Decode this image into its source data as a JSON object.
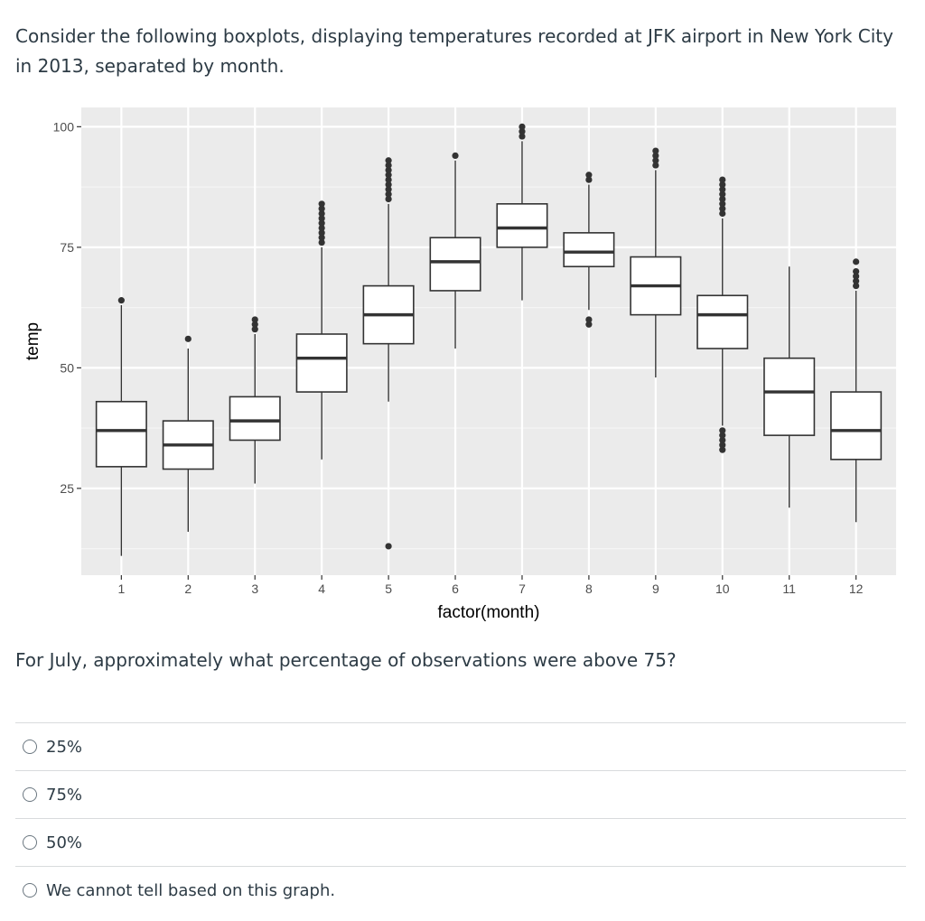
{
  "question": {
    "intro": "Consider the following boxplots, displaying temperatures recorded at JFK airport in New York City in 2013, separated by month.",
    "prompt": "For July, approximately what percentage of observations were above 75?"
  },
  "answers": [
    {
      "label": "25%"
    },
    {
      "label": "75%"
    },
    {
      "label": "50%"
    },
    {
      "label": "We cannot tell based on this graph."
    }
  ],
  "chart_data": {
    "type": "boxplot",
    "xlabel": "factor(month)",
    "ylabel": "temp",
    "ylim": [
      7,
      104
    ],
    "yticks": [
      25,
      50,
      75,
      100
    ],
    "grid": true,
    "background": "#ebebeb",
    "categories": [
      "1",
      "2",
      "3",
      "4",
      "5",
      "6",
      "7",
      "8",
      "9",
      "10",
      "11",
      "12"
    ],
    "boxes": [
      {
        "q1": 29.5,
        "median": 37,
        "q3": 43,
        "lower": 11,
        "upper": 63,
        "outliers": [
          64
        ]
      },
      {
        "q1": 29,
        "median": 34,
        "q3": 39,
        "lower": 16,
        "upper": 54,
        "outliers": [
          56
        ]
      },
      {
        "q1": 35,
        "median": 39,
        "q3": 44,
        "lower": 26,
        "upper": 57,
        "outliers": [
          58,
          59,
          60
        ]
      },
      {
        "q1": 45,
        "median": 52,
        "q3": 57,
        "lower": 31,
        "upper": 75,
        "outliers": [
          76,
          77,
          78,
          79,
          80,
          81,
          82,
          83,
          84
        ]
      },
      {
        "q1": 55,
        "median": 61,
        "q3": 67,
        "lower": 43,
        "upper": 84,
        "outliers": [
          13,
          85,
          86,
          87,
          88,
          89,
          90,
          91,
          92,
          93
        ]
      },
      {
        "q1": 66,
        "median": 72,
        "q3": 77,
        "lower": 54,
        "upper": 93,
        "outliers": [
          94
        ]
      },
      {
        "q1": 75,
        "median": 79,
        "q3": 84,
        "lower": 64,
        "upper": 97,
        "outliers": [
          98,
          99,
          100
        ]
      },
      {
        "q1": 71,
        "median": 74,
        "q3": 78,
        "lower": 62,
        "upper": 88,
        "outliers": [
          59,
          60,
          89,
          90
        ]
      },
      {
        "q1": 61,
        "median": 67,
        "q3": 73,
        "lower": 48,
        "upper": 91,
        "outliers": [
          92,
          93,
          94,
          95
        ]
      },
      {
        "q1": 54,
        "median": 61,
        "q3": 65,
        "lower": 38,
        "upper": 81,
        "outliers": [
          33,
          34,
          35,
          36,
          37,
          82,
          83,
          84,
          85,
          86,
          87,
          88,
          89
        ]
      },
      {
        "q1": 36,
        "median": 45,
        "q3": 52,
        "lower": 21,
        "upper": 71,
        "outliers": []
      },
      {
        "q1": 31,
        "median": 37,
        "q3": 45,
        "lower": 18,
        "upper": 66,
        "outliers": [
          67,
          68,
          69,
          70,
          72
        ]
      }
    ]
  }
}
